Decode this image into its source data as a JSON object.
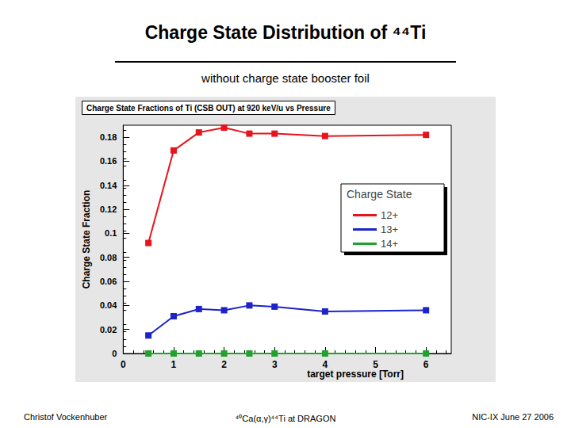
{
  "slide": {
    "title": "Charge State Distribution of ⁴⁴Ti",
    "subtitle": "without charge state booster foil",
    "footer": [
      "Christof Vockenhuber",
      "⁴⁰Ca(α,γ)⁴⁴Ti at DRAGON",
      "NIC-IX June 27 2006"
    ]
  },
  "chart_data": {
    "type": "line",
    "title": "Charge State Fractions of Ti (CSB OUT) at 920 keV/u vs Pressure",
    "xlabel": "target pressure [Torr]",
    "ylabel": "Charge State Fraction",
    "legend_title": "Charge State",
    "x": [
      0.5,
      1,
      1.5,
      2,
      2.5,
      3,
      4,
      6
    ],
    "series": [
      {
        "name": "12+",
        "color": "#e8141b",
        "values": [
          0.092,
          0.169,
          0.184,
          0.188,
          0.183,
          0.183,
          0.181,
          0.182
        ]
      },
      {
        "name": "13+",
        "color": "#1c23c9",
        "values": [
          0.015,
          0.031,
          0.037,
          0.036,
          0.04,
          0.039,
          0.035,
          0.036
        ]
      },
      {
        "name": "14+",
        "color": "#21a22c",
        "values": [
          0,
          0,
          0,
          0,
          0,
          0,
          0,
          0
        ]
      }
    ],
    "xlim": [
      0,
      6.5
    ],
    "xticks": [
      0,
      1,
      2,
      3,
      4,
      5,
      6
    ],
    "ylim": [
      0,
      0.19
    ],
    "yticks": [
      0,
      0.02,
      0.04,
      0.06,
      0.08,
      0.1,
      0.12,
      0.14,
      0.16,
      0.18
    ],
    "grid": false,
    "legend": "right",
    "marker": "square"
  }
}
